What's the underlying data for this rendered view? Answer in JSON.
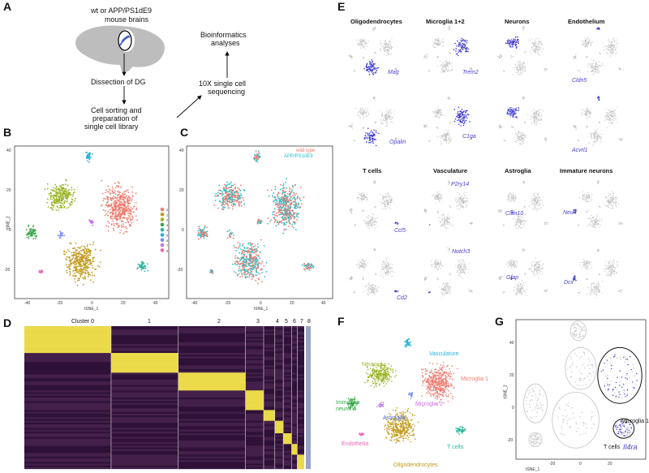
{
  "panel_letters": [
    "A",
    "B",
    "C",
    "D",
    "E",
    "F",
    "G"
  ],
  "panelA": {
    "mouse_label_line1": "wt or APP/PS1dE9",
    "mouse_label_line2": "mouse brains",
    "step1": "Dissection of DG",
    "step2_line1": "Cell sorting and",
    "step2_line2": "preparation of",
    "step2_line3": "single cell library",
    "step3_line1": "10X single cell",
    "step3_line2": "sequencing",
    "step4_line1": "Bioinformatics",
    "step4_line2": "analyses"
  },
  "panelB": {
    "xlabel": "tSNE_1",
    "ylabel": "tSNE_2",
    "yticks": [
      "40",
      "20",
      "0",
      "-20"
    ],
    "xticks": [
      "-40",
      "-20",
      "0",
      "20",
      "40"
    ],
    "legend": [
      "0",
      "1",
      "2",
      "3",
      "4",
      "5",
      "6",
      "7",
      "8"
    ],
    "legend_colors": [
      "#f07b6e",
      "#c29a1e",
      "#9bb528",
      "#3aa84a",
      "#27b79a",
      "#26b2d6",
      "#7a8cf2",
      "#c870ec",
      "#ec64b8"
    ]
  },
  "panelC": {
    "xlabel": "tSNE_1",
    "ylabel": "tSNE_2",
    "yticks": [
      "40",
      "20",
      "0",
      "-20"
    ],
    "xticks": [
      "-40",
      "-20",
      "0",
      "20",
      "40"
    ],
    "legend": [
      "wild type",
      "APP/PS1dE9"
    ],
    "legend_colors": [
      "#f07b6e",
      "#27bfc4"
    ]
  },
  "panelD": {
    "clusters": [
      "Cluster 0",
      "1",
      "2",
      "3",
      "4",
      "5",
      "6",
      "7",
      "8"
    ]
  },
  "panelE": {
    "titles": [
      "Oligodendrocytes",
      "Microglia 1+2",
      "Neurons",
      "Endothelium",
      "T cells",
      "Vasculature",
      "Astroglia",
      "Immature neurons"
    ],
    "genes_row1": [
      "Mag",
      "Trem2",
      "Lhx5",
      "Cldn5"
    ],
    "genes_row2": [
      "Opalin",
      "C1qa",
      "Syt1",
      "Acvrl1"
    ],
    "genes_row3": [
      "Ccl5",
      "P2ry14",
      "Cldn10",
      "Neu4"
    ],
    "genes_row4": [
      "Cd2",
      "Notch3",
      "Gfap",
      "Dcx"
    ]
  },
  "panelF": {
    "labels": [
      "Vasculature",
      "Neurons",
      "Microglia 1",
      "Immature neurons",
      "Astroglia",
      "Microglia 2",
      "Endothelia",
      "T cells",
      "Oligodendrocytes"
    ]
  },
  "panelG": {
    "xlabel": "tSNE_1",
    "ylabel": "tSNE_2",
    "yticks": [
      "40",
      "20",
      "0",
      "-20"
    ],
    "xticks": [
      "-20",
      "0",
      "20"
    ],
    "label_microglia": "Microglia 1",
    "label_tcells": "T cells",
    "gene": "Il4ra"
  }
}
